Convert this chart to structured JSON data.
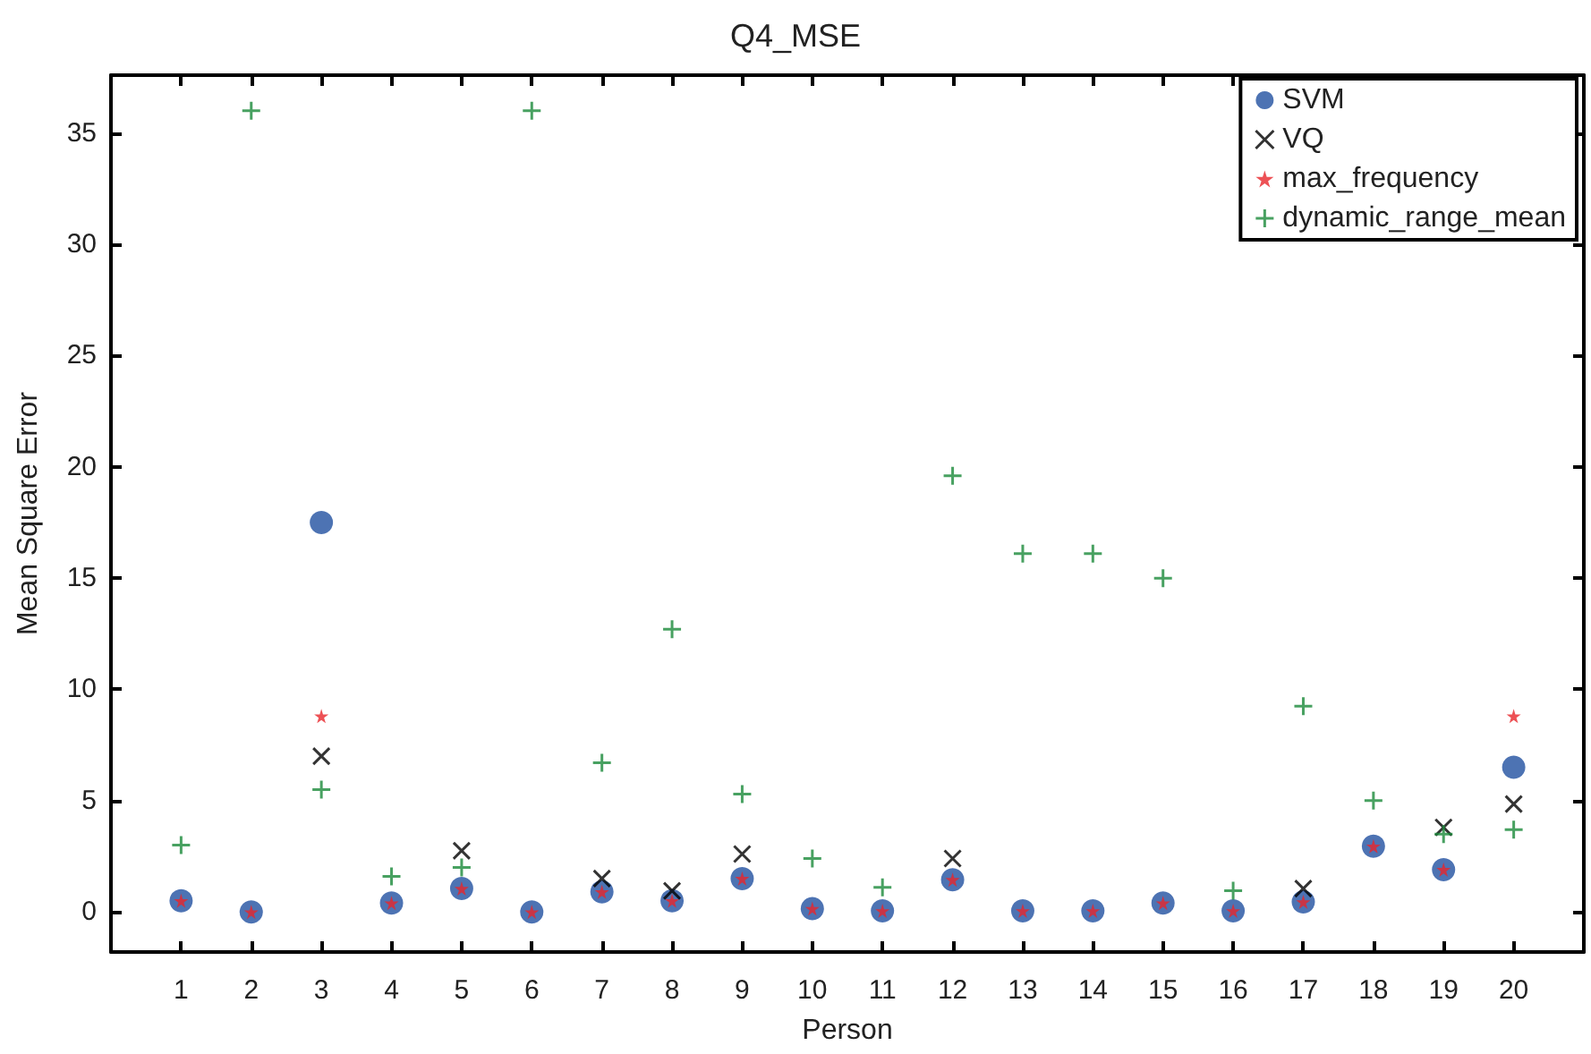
{
  "chart_data": {
    "type": "scatter",
    "title": "Q4_MSE",
    "xlabel": "Person",
    "ylabel": "Mean Square Error",
    "x": [
      1,
      2,
      3,
      4,
      5,
      6,
      7,
      8,
      9,
      10,
      11,
      12,
      13,
      14,
      15,
      16,
      17,
      18,
      19,
      20
    ],
    "xlim": [
      0,
      21
    ],
    "xticks": [
      1,
      2,
      3,
      4,
      5,
      6,
      7,
      8,
      9,
      10,
      11,
      12,
      13,
      14,
      15,
      16,
      17,
      18,
      19,
      20
    ],
    "ylim": [
      -1.8,
      37.6
    ],
    "yticks": [
      0,
      5,
      10,
      15,
      20,
      25,
      30,
      35
    ],
    "grid": false,
    "legend": "top right",
    "series": [
      {
        "name": "SVM",
        "color": "#2150a0",
        "marker": "circle",
        "values": [
          0.5,
          0.0,
          17.5,
          0.4,
          1.05,
          0.0,
          0.9,
          0.5,
          1.5,
          0.15,
          0.05,
          1.45,
          0.05,
          0.05,
          0.4,
          0.05,
          0.45,
          2.95,
          1.9,
          6.5
        ]
      },
      {
        "name": "VQ",
        "color": "#000000",
        "marker": "x",
        "values": [
          null,
          null,
          7.0,
          null,
          2.75,
          null,
          1.5,
          0.95,
          2.6,
          null,
          null,
          2.4,
          null,
          null,
          null,
          null,
          1.05,
          null,
          3.8,
          4.85
        ]
      },
      {
        "name": "max_frequency",
        "color": "#e8262a",
        "marker": "star",
        "values": [
          0.5,
          0.0,
          8.8,
          0.4,
          1.05,
          0.0,
          0.9,
          0.5,
          1.5,
          0.15,
          0.05,
          1.45,
          0.05,
          0.05,
          0.4,
          0.05,
          0.45,
          2.95,
          1.9,
          8.8
        ]
      },
      {
        "name": "dynamic_range_mean",
        "color": "#1a8a3a",
        "marker": "cross",
        "values": [
          3.0,
          36.0,
          5.5,
          1.6,
          2.0,
          36.0,
          6.7,
          12.7,
          5.3,
          2.4,
          1.1,
          19.6,
          16.1,
          16.1,
          15.0,
          0.95,
          9.25,
          5.0,
          3.5,
          3.7
        ]
      }
    ]
  }
}
